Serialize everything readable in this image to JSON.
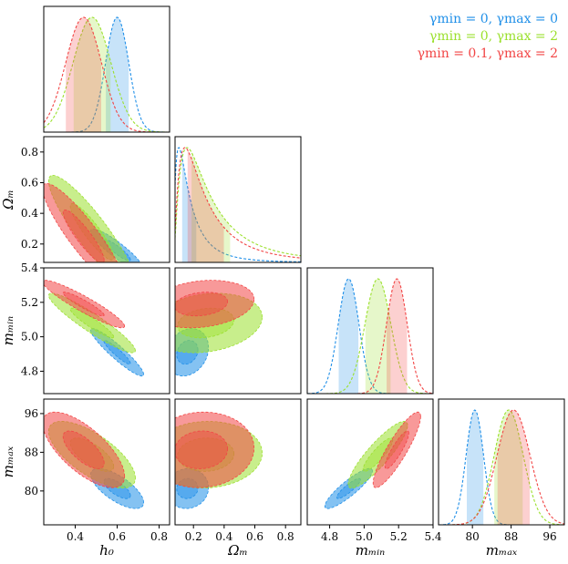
{
  "chart_data": {
    "type": "corner-plot",
    "parameters": [
      {
        "key": "h0",
        "label": "h₀",
        "ticks": [
          0.4,
          0.6,
          0.8
        ],
        "tick_labels": [
          "0.4",
          "0.6",
          "0.8"
        ],
        "range": [
          0.25,
          0.85
        ]
      },
      {
        "key": "omega_m",
        "label": "Ωₘ",
        "ticks": [
          0.2,
          0.4,
          0.6,
          0.8
        ],
        "tick_labels": [
          "0.2",
          "0.4",
          "0.6",
          "0.8"
        ],
        "range": [
          0.08,
          0.9
        ]
      },
      {
        "key": "m_min",
        "label": "mₘᵢₙ",
        "ticks": [
          4.8,
          5.0,
          5.2,
          5.4
        ],
        "tick_labels": [
          "4.8",
          "5.0",
          "5.2",
          "5.4"
        ],
        "range": [
          4.67,
          5.4
        ]
      },
      {
        "key": "m_max",
        "label": "mₘₐₓ",
        "ticks": [
          80,
          88,
          96
        ],
        "tick_labels": [
          "80",
          "88",
          "96"
        ],
        "range": [
          73,
          99
        ]
      }
    ],
    "series": [
      {
        "name": "γmin = 0, γmax = 0",
        "color": "#1f8fe8",
        "mean": [
          0.6,
          0.16,
          4.91,
          80.5
        ],
        "sd": [
          0.055,
          0.06,
          0.06,
          1.8
        ],
        "skew": [
          0,
          1,
          0,
          0
        ]
      },
      {
        "name": "γmin = 0, γmax = 2",
        "color": "#9be02d",
        "mean": [
          0.48,
          0.28,
          5.08,
          87.5
        ],
        "sd": [
          0.09,
          0.16,
          0.075,
          3.0
        ],
        "skew": [
          0,
          1,
          0,
          0
        ]
      },
      {
        "name": "γmin = 0.1, γmax = 2",
        "color": "#f24545",
        "mean": [
          0.44,
          0.25,
          5.19,
          88.5
        ],
        "sd": [
          0.085,
          0.15,
          0.06,
          3.4
        ],
        "skew": [
          0,
          1,
          0,
          0
        ]
      }
    ]
  }
}
